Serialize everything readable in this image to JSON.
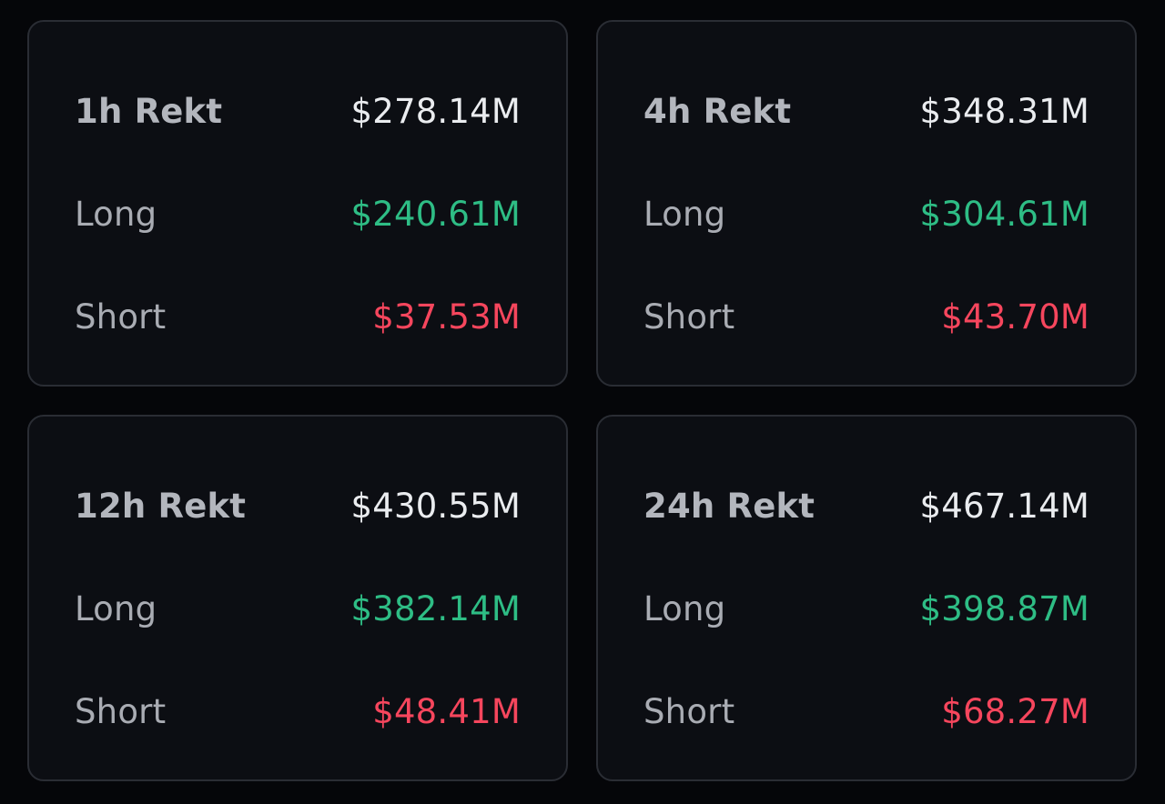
{
  "colors": {
    "background": "#050609",
    "card": "#0c0e13",
    "border": "#2a2d34",
    "label": "#a9acb3",
    "total": "#eaecef",
    "long": "#2ebd85",
    "short": "#f6465d"
  },
  "cards": [
    {
      "title": "1h Rekt",
      "total": "$278.14M",
      "long_label": "Long",
      "long": "$240.61M",
      "short_label": "Short",
      "short": "$37.53M"
    },
    {
      "title": "4h Rekt",
      "total": "$348.31M",
      "long_label": "Long",
      "long": "$304.61M",
      "short_label": "Short",
      "short": "$43.70M"
    },
    {
      "title": "12h Rekt",
      "total": "$430.55M",
      "long_label": "Long",
      "long": "$382.14M",
      "short_label": "Short",
      "short": "$48.41M"
    },
    {
      "title": "24h Rekt",
      "total": "$467.14M",
      "long_label": "Long",
      "long": "$398.87M",
      "short_label": "Short",
      "short": "$68.27M"
    }
  ]
}
